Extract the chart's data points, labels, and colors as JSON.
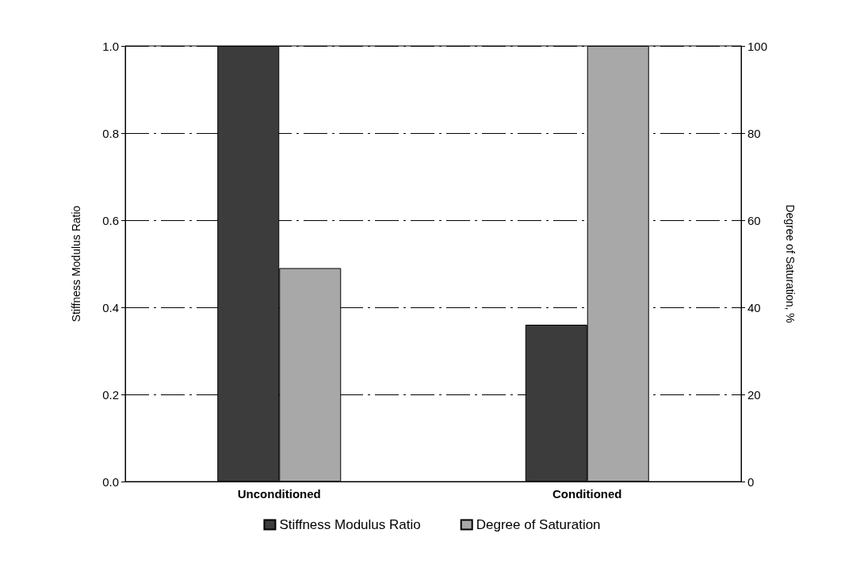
{
  "chart_data": {
    "type": "bar",
    "categories": [
      "Unconditioned",
      "Conditioned"
    ],
    "series": [
      {
        "name": "Stiffness Modulus Ratio",
        "color": "#3c3c3c",
        "values": [
          1.0,
          0.36
        ]
      },
      {
        "name": "Degree of Saturation",
        "color": "#a8a8a8",
        "values": [
          49,
          100
        ],
        "axis": "y2"
      }
    ],
    "ylabel": "Stiffness Modulus Ratio",
    "y2label": "Degree of Saturation, %",
    "ylim": [
      0,
      1
    ],
    "yticks": [
      {
        "value": 0,
        "label": "0.0"
      },
      {
        "value": 0.2,
        "label": "0.2"
      },
      {
        "value": 0.4,
        "label": "0.4"
      },
      {
        "value": 0.6,
        "label": "0.6"
      },
      {
        "value": 0.8,
        "label": "0.8"
      },
      {
        "value": 1,
        "label": "1.0"
      }
    ],
    "y2lim": [
      0,
      100
    ],
    "y2ticks": [
      0,
      20,
      40,
      60,
      80,
      100
    ],
    "grid": "y",
    "legend": "bottom"
  }
}
